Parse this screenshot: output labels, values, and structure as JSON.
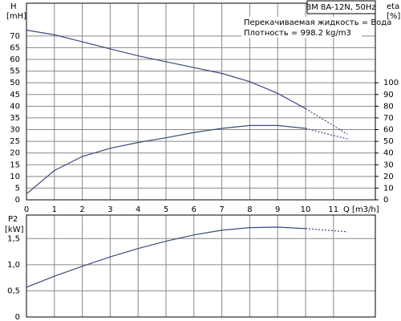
{
  "chart_data": [
    {
      "type": "line",
      "title": "BM 8A-12N, 50Hz",
      "annotations": [
        "Перекачиваемая жидкость = Вода",
        "Плотность = 998.2 kg/m3"
      ],
      "y_label": "H",
      "y_unit": "[mH]",
      "y2_label": "eta",
      "y2_unit": "[%]",
      "x_label": "Q [m3/h]",
      "x": [
        0,
        1,
        2,
        3,
        4,
        5,
        6,
        7,
        8,
        9,
        10,
        11.5
      ],
      "xlim": [
        0,
        12.5
      ],
      "xticks": [
        0,
        1,
        2,
        3,
        4,
        5,
        6,
        7,
        8,
        9,
        10,
        11
      ],
      "ylim": [
        0,
        84
      ],
      "yticks": [
        0,
        5,
        10,
        15,
        20,
        25,
        30,
        35,
        40,
        45,
        50,
        55,
        60,
        65,
        70
      ],
      "y2lim": [
        0,
        168
      ],
      "y2ticks": [
        0,
        10,
        20,
        30,
        40,
        50,
        60,
        70,
        80,
        90,
        100
      ],
      "grid": true,
      "series": [
        {
          "color": "#3b4a7a",
          "dashed": false,
          "values": [
            72.5,
            70.5,
            67.5,
            64.5,
            61.5,
            59,
            56.5,
            54,
            50.5,
            45.5,
            39,
            null
          ]
        },
        {
          "color": "#3b4a7a",
          "dashed": true,
          "values": [
            null,
            null,
            null,
            null,
            null,
            null,
            null,
            null,
            null,
            null,
            39,
            28
          ]
        },
        {
          "color": "#3b4a7a",
          "dashed": false,
          "axis": "y2",
          "values": [
            5,
            25,
            37,
            44,
            49,
            53,
            57.5,
            61,
            63.5,
            63.5,
            61,
            null
          ]
        },
        {
          "color": "#3b4a7a",
          "dashed": true,
          "axis": "y2",
          "values": [
            null,
            null,
            null,
            null,
            null,
            null,
            null,
            null,
            null,
            null,
            61,
            52
          ]
        }
      ]
    },
    {
      "type": "line",
      "y_label": "P2",
      "y_unit": "[kW]",
      "x": [
        0,
        1,
        2,
        3,
        4,
        5,
        6,
        7,
        8,
        9,
        10,
        11.5
      ],
      "xlim": [
        0,
        12.5
      ],
      "xticks": [
        0,
        1,
        2,
        3,
        4,
        5,
        6,
        7,
        8,
        9,
        10,
        11
      ],
      "ylim": [
        0,
        1.95
      ],
      "yticks": [
        0,
        {
          "value": 0.5,
          "label": "0,5"
        },
        {
          "value": 1,
          "label": "1,0"
        },
        {
          "value": 1.5,
          "label": "1,5"
        }
      ],
      "grid": true,
      "series": [
        {
          "color": "#3b4a7a",
          "dashed": false,
          "values": [
            0.57,
            0.78,
            0.97,
            1.15,
            1.31,
            1.45,
            1.57,
            1.66,
            1.71,
            1.72,
            1.69,
            null
          ]
        },
        {
          "color": "#3b4a7a",
          "dashed": true,
          "values": [
            null,
            null,
            null,
            null,
            null,
            null,
            null,
            null,
            null,
            null,
            1.69,
            1.63
          ]
        }
      ]
    }
  ]
}
